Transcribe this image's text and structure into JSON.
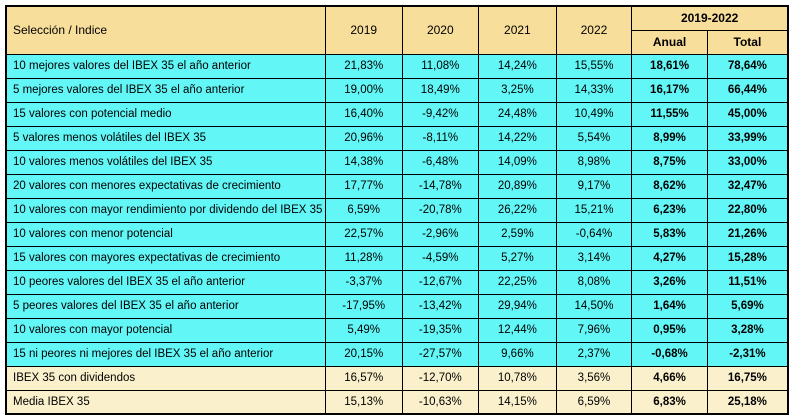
{
  "colors": {
    "header_background": "#f8de9b",
    "strategy_row_background": "#63f6f6",
    "benchmark_row_background": "#faf0cc",
    "border": "#000000",
    "text": "#000000"
  },
  "chart_data": {
    "type": "table",
    "header": {
      "label_column": "Selección / Indice",
      "year_columns": [
        "2019",
        "2020",
        "2021",
        "2022"
      ],
      "period_group": "2019-2022",
      "period_subcolumns": [
        "Anual",
        "Total"
      ]
    },
    "rows": [
      {
        "label": "10 mejores valores del IBEX 35 el año anterior",
        "values": [
          "21,83%",
          "11,08%",
          "14,24%",
          "15,55%"
        ],
        "anual": "18,61%",
        "total": "78,64%",
        "benchmark": false
      },
      {
        "label": "5 mejores valores del IBEX 35 el año anterior",
        "values": [
          "19,00%",
          "18,49%",
          "3,25%",
          "14,33%"
        ],
        "anual": "16,17%",
        "total": "66,44%",
        "benchmark": false
      },
      {
        "label": "15 valores con potencial medio",
        "values": [
          "16,40%",
          "-9,42%",
          "24,48%",
          "10,49%"
        ],
        "anual": "11,55%",
        "total": "45,00%",
        "benchmark": false
      },
      {
        "label": "5 valores menos volátiles del IBEX 35",
        "values": [
          "20,96%",
          "-8,11%",
          "14,22%",
          "5,54%"
        ],
        "anual": "8,99%",
        "total": "33,99%",
        "benchmark": false
      },
      {
        "label": "10 valores menos volátiles del IBEX 35",
        "values": [
          "14,38%",
          "-6,48%",
          "14,09%",
          "8,98%"
        ],
        "anual": "8,75%",
        "total": "33,00%",
        "benchmark": false
      },
      {
        "label": "20 valores con menores expectativas de crecimiento",
        "values": [
          "17,77%",
          "-14,78%",
          "20,89%",
          "9,17%"
        ],
        "anual": "8,62%",
        "total": "32,47%",
        "benchmark": false
      },
      {
        "label": "10 valores con mayor rendimiento por dividendo del IBEX 35",
        "values": [
          "6,59%",
          "-20,78%",
          "26,22%",
          "15,21%"
        ],
        "anual": "6,23%",
        "total": "22,80%",
        "benchmark": false
      },
      {
        "label": "10 valores con menor potencial",
        "values": [
          "22,57%",
          "-2,96%",
          "2,59%",
          "-0,64%"
        ],
        "anual": "5,83%",
        "total": "21,26%",
        "benchmark": false
      },
      {
        "label": "15 valores con mayores expectativas de crecimiento",
        "values": [
          "11,28%",
          "-4,59%",
          "5,27%",
          "3,14%"
        ],
        "anual": "4,27%",
        "total": "15,28%",
        "benchmark": false
      },
      {
        "label": "10 peores valores del IBEX 35 el año anterior",
        "values": [
          "-3,37%",
          "-12,67%",
          "22,25%",
          "8,08%"
        ],
        "anual": "3,26%",
        "total": "11,51%",
        "benchmark": false
      },
      {
        "label": "5 peores valores del IBEX 35 el año anterior",
        "values": [
          "-17,95%",
          "-13,42%",
          "29,94%",
          "14,50%"
        ],
        "anual": "1,64%",
        "total": "5,69%",
        "benchmark": false
      },
      {
        "label": "10 valores con mayor potencial",
        "values": [
          "5,49%",
          "-19,35%",
          "12,44%",
          "7,96%"
        ],
        "anual": "0,95%",
        "total": "3,28%",
        "benchmark": false
      },
      {
        "label": "15 ni peores ni mejores del IBEX 35 el año anterior",
        "values": [
          "20,15%",
          "-27,57%",
          "9,66%",
          "2,37%"
        ],
        "anual": "-0,68%",
        "total": "-2,31%",
        "benchmark": false
      },
      {
        "label": "IBEX 35 con dividendos",
        "values": [
          "16,57%",
          "-12,70%",
          "10,78%",
          "3,56%"
        ],
        "anual": "4,66%",
        "total": "16,75%",
        "benchmark": true
      },
      {
        "label": "Media IBEX 35",
        "values": [
          "15,13%",
          "-10,63%",
          "14,15%",
          "6,59%"
        ],
        "anual": "6,83%",
        "total": "25,18%",
        "benchmark": true
      }
    ]
  }
}
